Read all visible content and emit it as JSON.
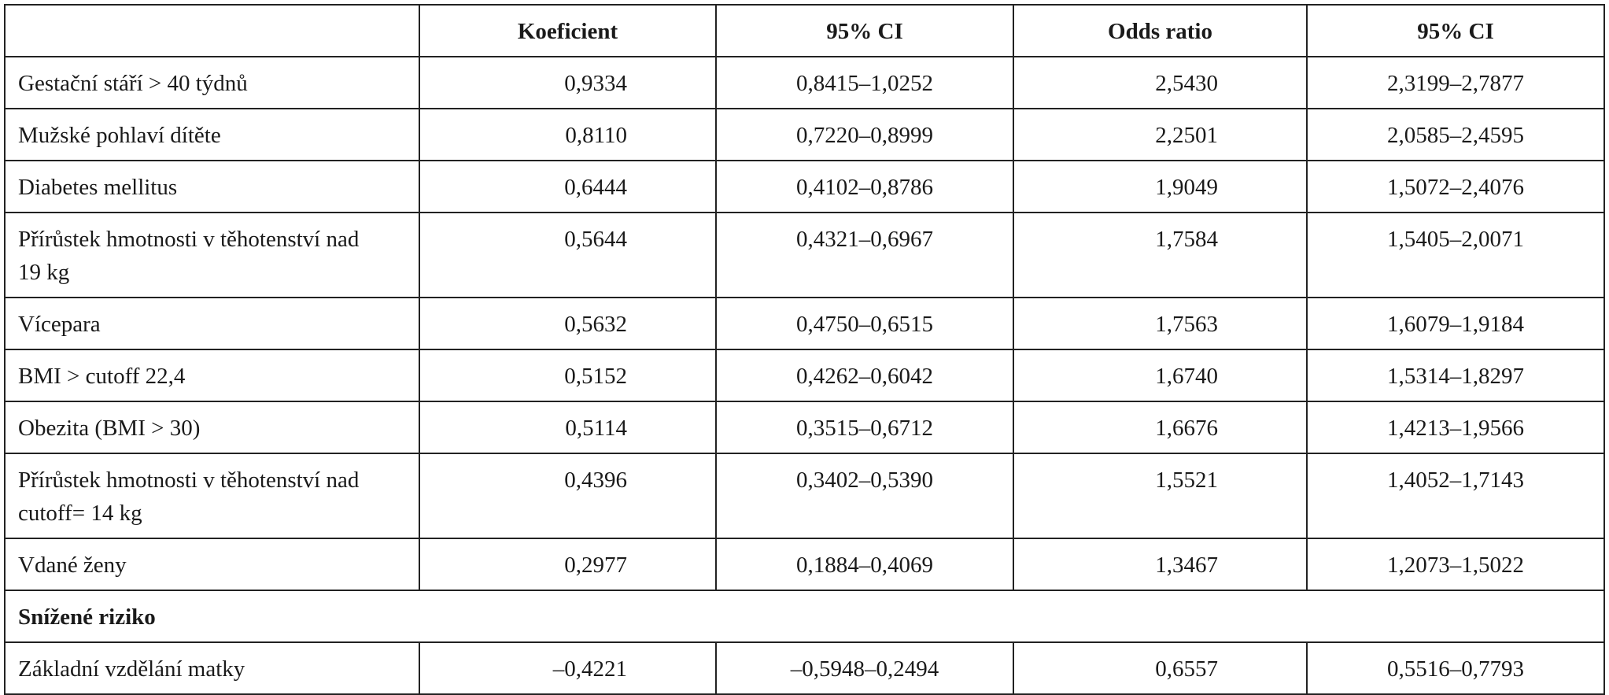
{
  "table": {
    "header": [
      "Koeficient",
      "95% CI",
      "Odds ratio",
      "95% CI"
    ],
    "rows": [
      [
        "Gestační stáří > 40 týdnů",
        "0,9334",
        "0,8415–1,0252",
        "2,5430",
        "2,3199–2,7877"
      ],
      [
        "Mužské pohlaví dítěte",
        "0,8110",
        "0,7220–0,8999",
        "2,2501",
        "2,0585–2,4595"
      ],
      [
        "Diabetes mellitus",
        "0,6444",
        "0,4102–0,8786",
        "1,9049",
        "1,5072–2,4076"
      ],
      [
        "Přírůstek hmotnosti v těhotenství nad 19 kg",
        "0,5644",
        "0,4321–0,6967",
        "1,7584",
        "1,5405–2,0071"
      ],
      [
        "Vícepara",
        "0,5632",
        "0,4750–0,6515",
        "1,7563",
        "1,6079–1,9184"
      ],
      [
        "BMI > cutoff 22,4",
        "0,5152",
        "0,4262–0,6042",
        "1,6740",
        "1,5314–1,8297"
      ],
      [
        "Obezita (BMI > 30)",
        "0,5114",
        "0,3515–0,6712",
        "1,6676",
        "1,4213–1,9566"
      ],
      [
        "Přírůstek hmotnosti v těhotenství nad cutoff= 14 kg",
        "0,4396",
        "0,3402–0,5390",
        "1,5521",
        "1,4052–1,7143"
      ],
      [
        "Vdané ženy",
        "0,2977",
        "0,1884–0,4069",
        "1,3467",
        "1,2073–1,5022"
      ]
    ],
    "section": {
      "label": "Snížené riziko",
      "rows": [
        [
          "Základní vzdělání matky",
          "–0,4221",
          "–0,5948–0,2494",
          "0,6557",
          "0,5516–0,7793"
        ]
      ]
    }
  }
}
